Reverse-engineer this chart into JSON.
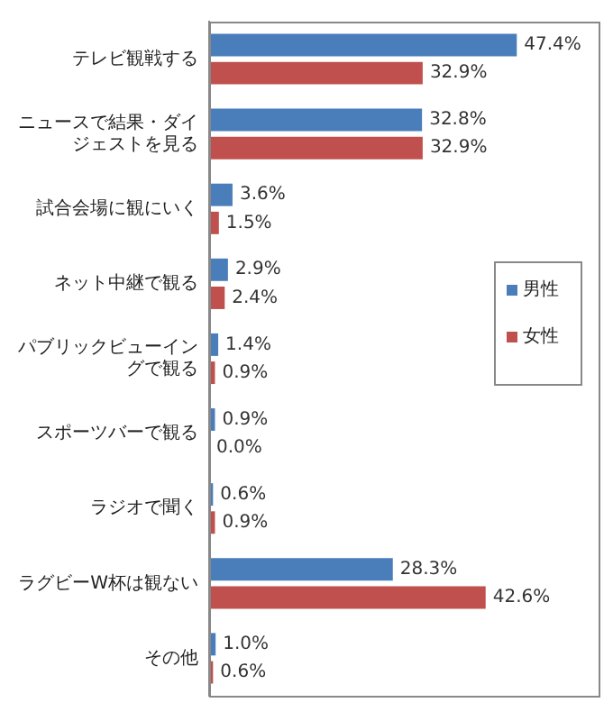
{
  "chart_data": {
    "type": "bar",
    "orientation": "horizontal",
    "categories": [
      "テレビ観戦する",
      "ニュースで結果・ダイジェストを見る",
      "試合会場に観にいく",
      "ネット中継で観る",
      "パブリックビューイングで観る",
      "スポーツバーで観る",
      "ラジオで聞く",
      "ラグビーW杯は観ない",
      "その他"
    ],
    "series": [
      {
        "name": "男性",
        "color": "#4a7ebb",
        "values": [
          47.4,
          32.8,
          3.6,
          2.9,
          1.4,
          0.9,
          0.6,
          28.3,
          1.0
        ],
        "value_labels": [
          "47.4%",
          "32.8%",
          "3.6%",
          "2.9%",
          "1.4%",
          "0.9%",
          "0.6%",
          "28.3%",
          "1.0%"
        ]
      },
      {
        "name": "女性",
        "color": "#c0504d",
        "values": [
          32.9,
          32.9,
          1.5,
          2.4,
          0.9,
          0.0,
          0.9,
          42.6,
          0.6
        ],
        "value_labels": [
          "32.9%",
          "32.9%",
          "1.5%",
          "2.4%",
          "0.9%",
          "0.0%",
          "0.9%",
          "42.6%",
          "0.6%"
        ]
      }
    ],
    "legend": "right"
  }
}
